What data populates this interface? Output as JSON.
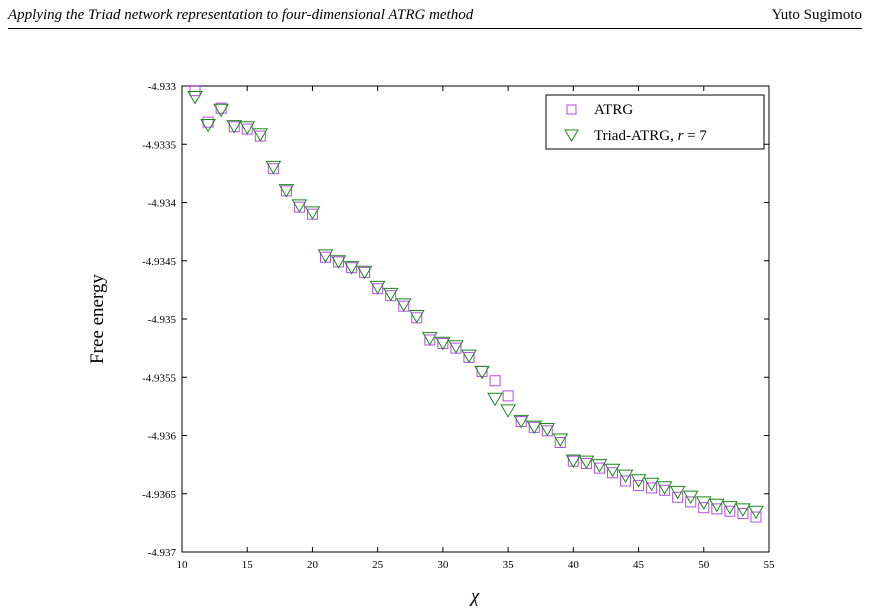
{
  "header": {
    "title": "Applying the Triad network representation to four-dimensional ATRG method",
    "author": "Yuto Sugimoto"
  },
  "chart_data": {
    "type": "scatter",
    "xlabel": "χ",
    "ylabel": "Free energy",
    "xlim": [
      10,
      55
    ],
    "ylim": [
      -4.937,
      -4.933
    ],
    "xticks": [
      "10",
      "15",
      "20",
      "25",
      "30",
      "35",
      "40",
      "45",
      "50",
      "55"
    ],
    "yticks": [
      "-4.933",
      "-4.9335",
      "-4.934",
      "-4.9345",
      "-4.935",
      "-4.9355",
      "-4.936",
      "-4.9365",
      "-4.937"
    ],
    "legend_position": "top-right",
    "colors": {
      "atrg": "#b44be6",
      "triad": "#1a8a1a"
    },
    "x": [
      11,
      12,
      13,
      14,
      15,
      16,
      17,
      18,
      19,
      20,
      21,
      22,
      23,
      24,
      25,
      26,
      27,
      28,
      29,
      30,
      31,
      32,
      33,
      34,
      35,
      36,
      37,
      38,
      39,
      40,
      41,
      42,
      43,
      44,
      45,
      46,
      47,
      48,
      49,
      50,
      51,
      52,
      53,
      54
    ],
    "series": [
      {
        "name": "ATRG",
        "marker": "square",
        "values": [
          -4.93304,
          -4.93331,
          -4.93319,
          -4.93335,
          -4.93337,
          -4.93343,
          -4.93371,
          -4.9339,
          -4.93404,
          -4.9341,
          -4.93447,
          -4.93451,
          -4.93456,
          -4.9346,
          -4.93474,
          -4.9348,
          -4.93489,
          -4.93499,
          -4.93518,
          -4.93521,
          -4.93525,
          -4.93533,
          -4.93545,
          -4.93553,
          -4.93566,
          -4.93588,
          -4.93593,
          -4.93596,
          -4.93606,
          -4.93622,
          -4.93624,
          -4.93628,
          -4.93632,
          -4.93639,
          -4.93643,
          -4.93645,
          -4.93647,
          -4.93653,
          -4.93657,
          -4.93662,
          -4.93663,
          -4.93665,
          -4.93667,
          -4.9367
        ]
      },
      {
        "name": "Triad-ATRG, r = 7",
        "marker": "triangle-down",
        "values": [
          -4.93309,
          -4.93333,
          -4.9332,
          -4.93334,
          -4.93335,
          -4.93341,
          -4.93369,
          -4.93389,
          -4.93402,
          -4.93408,
          -4.93445,
          -4.9345,
          -4.93455,
          -4.93459,
          -4.93472,
          -4.93478,
          -4.93487,
          -4.93497,
          -4.93516,
          -4.9352,
          -4.93523,
          -4.93531,
          -4.93545,
          -4.93568,
          -4.93578,
          -4.93587,
          -4.93592,
          -4.93594,
          -4.93603,
          -4.93621,
          -4.93622,
          -4.93625,
          -4.93629,
          -4.93634,
          -4.93638,
          -4.93641,
          -4.93644,
          -4.93648,
          -4.93652,
          -4.93657,
          -4.93659,
          -4.93661,
          -4.93663,
          -4.93665
        ]
      }
    ]
  }
}
